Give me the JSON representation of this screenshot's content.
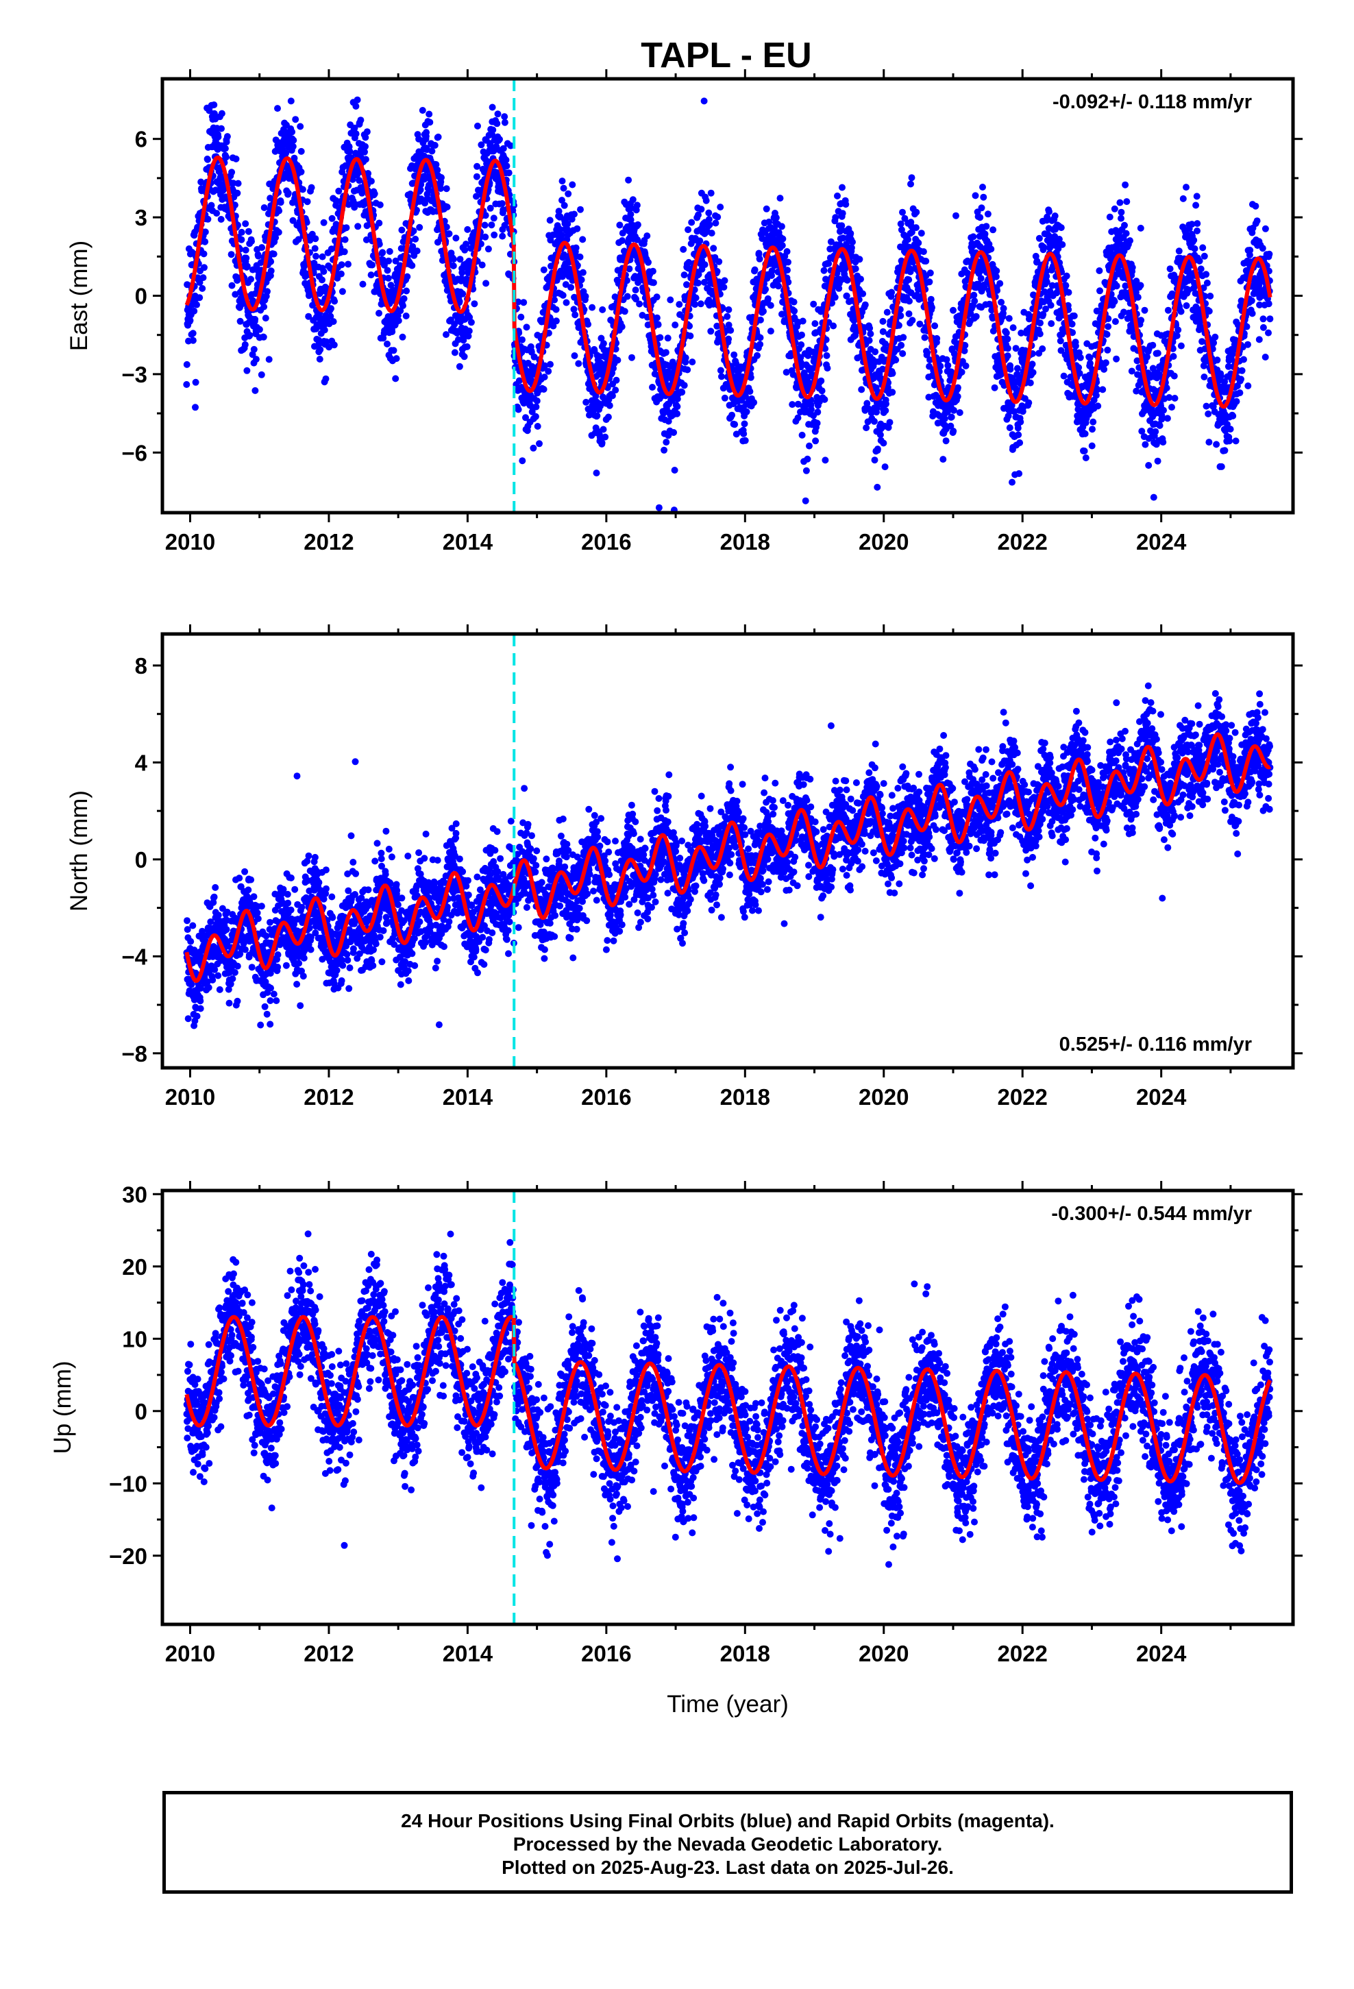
{
  "title": "TAPL - EU",
  "footer": {
    "line1": "24 Hour Positions Using Final Orbits (blue) and Rapid Orbits (magenta).",
    "line2": "Processed by the Nevada Geodetic Laboratory.",
    "line3": "Plotted on 2025-Aug-23. Last data on 2025-Jul-26."
  },
  "colors": {
    "points": "#0000ff",
    "model": "#ff0000",
    "event_line": "#00e5e5",
    "frame": "#000000"
  },
  "chart_data": [
    {
      "type": "scatter",
      "component": "East",
      "ylabel": "East (mm)",
      "xlabel": "",
      "xlim": [
        2009.6,
        2025.9
      ],
      "ylim": [
        -8.3,
        8.3
      ],
      "yticks": [
        -6,
        -3,
        0,
        3,
        6
      ],
      "xticks": [
        2010,
        2012,
        2014,
        2016,
        2018,
        2020,
        2022,
        2024
      ],
      "rate_text": "-0.092+/- 0.118 mm/yr",
      "rate_position": "top-right",
      "event_line_x": 2014.67,
      "data_range": [
        2009.95,
        2025.57
      ],
      "model": {
        "segments": [
          {
            "from": 2009.95,
            "to": 2014.67,
            "offset": 2.4,
            "rate": -0.03,
            "annual_amp": 2.9,
            "annual_phase": 0.15,
            "semi_amp": 0.0,
            "semi_phase": 0.0
          },
          {
            "from": 2014.67,
            "to": 2025.57,
            "offset": -0.5,
            "rate": -0.06,
            "annual_amp": 2.85,
            "annual_phase": 0.15,
            "semi_amp": 0.0,
            "semi_phase": 0.0
          }
        ]
      },
      "scatter": {
        "count": 5000,
        "noise": 1.1,
        "outlier_fraction": 0.01,
        "outlier_scale": 3
      }
    },
    {
      "type": "scatter",
      "component": "North",
      "ylabel": "North (mm)",
      "xlabel": "",
      "xlim": [
        2009.6,
        2025.9
      ],
      "ylim": [
        -8.6,
        9.3
      ],
      "yticks": [
        -8,
        -4,
        0,
        4,
        8
      ],
      "xticks": [
        2010,
        2012,
        2014,
        2016,
        2018,
        2020,
        2022,
        2024
      ],
      "rate_text": "0.525+/- 0.116 mm/yr",
      "rate_position": "bottom-right",
      "event_line_x": 2014.67,
      "data_range": [
        2009.95,
        2025.57
      ],
      "model": {
        "segments": [
          {
            "from": 2009.95,
            "to": 2025.57,
            "offset": -3.8,
            "rate": 0.52,
            "annual_amp": 0.55,
            "annual_phase": 0.45,
            "semi_amp": 0.85,
            "semi_phase": 0.2
          }
        ]
      },
      "scatter": {
        "count": 5000,
        "noise": 0.9,
        "outlier_fraction": 0.008,
        "outlier_scale": 3
      }
    },
    {
      "type": "scatter",
      "component": "Up",
      "ylabel": "Up (mm)",
      "xlabel": "Time (year)",
      "xlim": [
        2009.6,
        2025.9
      ],
      "ylim": [
        -29.5,
        30.5
      ],
      "yticks": [
        -20,
        -10,
        0,
        10,
        20,
        30
      ],
      "xticks": [
        2010,
        2012,
        2014,
        2016,
        2018,
        2020,
        2022,
        2024
      ],
      "rate_text": "-0.300+/- 0.544 mm/yr",
      "rate_position": "top-right",
      "event_line_x": 2014.67,
      "data_range": [
        2009.95,
        2025.57
      ],
      "model": {
        "segments": [
          {
            "from": 2009.95,
            "to": 2014.67,
            "offset": 5.5,
            "rate": 0.0,
            "annual_amp": 7.5,
            "annual_phase": 0.38,
            "semi_amp": 0.0,
            "semi_phase": 0.0
          },
          {
            "from": 2014.67,
            "to": 2025.57,
            "offset": 0.5,
            "rate": -0.2,
            "annual_amp": 7.4,
            "annual_phase": 0.38,
            "semi_amp": 0.0,
            "semi_phase": 0.0
          }
        ]
      },
      "scatter": {
        "count": 5000,
        "noise": 4.0,
        "outlier_fraction": 0.008,
        "outlier_scale": 3
      }
    }
  ]
}
